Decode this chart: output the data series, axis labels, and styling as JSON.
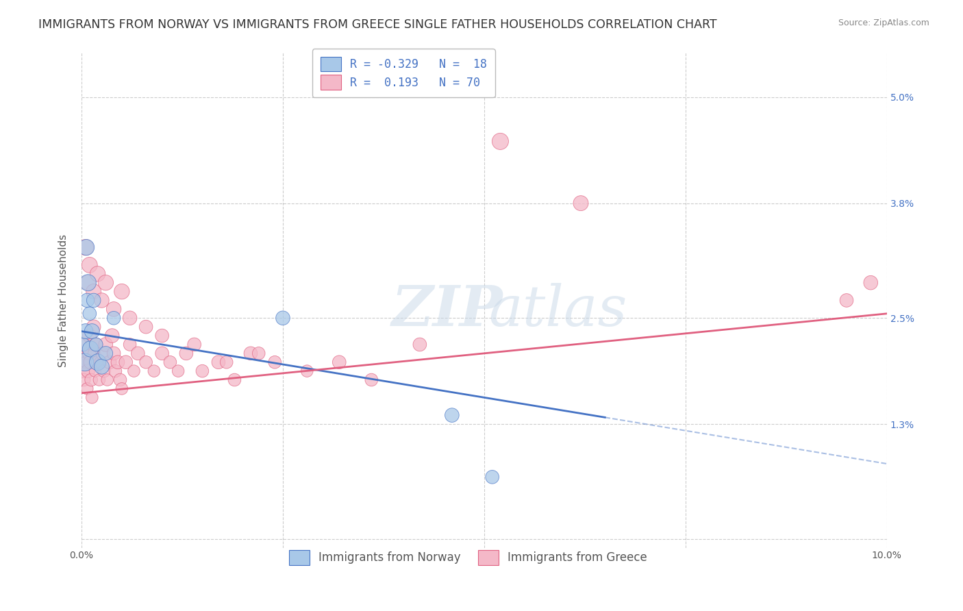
{
  "title": "IMMIGRANTS FROM NORWAY VS IMMIGRANTS FROM GREECE SINGLE FATHER HOUSEHOLDS CORRELATION CHART",
  "source": "Source: ZipAtlas.com",
  "ylabel": "Single Father Households",
  "xlim": [
    0.0,
    10.0
  ],
  "ylim": [
    -0.1,
    5.5
  ],
  "ytick_vals": [
    0.0,
    1.3,
    2.5,
    3.8,
    5.0
  ],
  "ytick_labels": [
    "",
    "1.3%",
    "2.5%",
    "3.8%",
    "5.0%"
  ],
  "xtick_vals": [
    0.0,
    2.5,
    5.0,
    7.5,
    10.0
  ],
  "xtick_labels": [
    "0.0%",
    "",
    "",
    "",
    "10.0%"
  ],
  "norway_R": -0.329,
  "norway_N": 18,
  "greece_R": 0.193,
  "greece_N": 70,
  "norway_color": "#A8C8E8",
  "greece_color": "#F4B8C8",
  "norway_edge_color": "#4472C4",
  "greece_edge_color": "#E06080",
  "norway_line_color": "#4472C4",
  "greece_line_color": "#E06080",
  "norway_line_y0": 2.35,
  "norway_line_y_at_x7": 1.3,
  "greece_line_y0": 1.65,
  "greece_line_y10": 2.55,
  "norway_scatter_x": [
    0.02,
    0.04,
    0.05,
    0.06,
    0.07,
    0.08,
    0.1,
    0.11,
    0.13,
    0.15,
    0.18,
    0.2,
    0.25,
    0.3,
    0.4,
    2.5,
    4.6,
    5.1
  ],
  "norway_scatter_y": [
    2.2,
    2.0,
    2.35,
    3.3,
    2.7,
    2.9,
    2.55,
    2.15,
    2.35,
    2.7,
    2.2,
    2.0,
    1.95,
    2.1,
    2.5,
    2.5,
    1.4,
    0.7
  ],
  "norway_scatter_size": [
    200,
    350,
    250,
    280,
    220,
    300,
    200,
    280,
    250,
    220,
    200,
    300,
    250,
    220,
    200,
    220,
    220,
    200
  ],
  "greece_scatter_x": [
    0.01,
    0.02,
    0.03,
    0.04,
    0.05,
    0.06,
    0.07,
    0.08,
    0.09,
    0.1,
    0.11,
    0.12,
    0.13,
    0.14,
    0.15,
    0.16,
    0.17,
    0.18,
    0.2,
    0.22,
    0.24,
    0.26,
    0.28,
    0.3,
    0.32,
    0.35,
    0.38,
    0.4,
    0.42,
    0.45,
    0.48,
    0.5,
    0.55,
    0.6,
    0.65,
    0.7,
    0.8,
    0.9,
    1.0,
    1.1,
    1.2,
    1.3,
    1.5,
    1.7,
    1.9,
    2.1,
    2.4,
    2.8,
    3.2,
    3.6,
    4.2,
    5.2,
    6.2,
    9.5,
    0.05,
    0.08,
    0.1,
    0.15,
    0.2,
    0.25,
    0.3,
    0.4,
    0.5,
    0.6,
    0.8,
    1.0,
    1.4,
    1.8,
    2.2,
    9.8
  ],
  "greece_scatter_y": [
    2.0,
    1.9,
    1.8,
    2.1,
    2.2,
    2.0,
    1.7,
    1.9,
    2.1,
    2.3,
    2.0,
    1.8,
    1.6,
    2.2,
    2.4,
    2.1,
    1.9,
    2.2,
    2.0,
    1.8,
    2.0,
    2.1,
    1.9,
    2.2,
    1.8,
    2.0,
    2.3,
    2.1,
    1.9,
    2.0,
    1.8,
    1.7,
    2.0,
    2.2,
    1.9,
    2.1,
    2.0,
    1.9,
    2.1,
    2.0,
    1.9,
    2.1,
    1.9,
    2.0,
    1.8,
    2.1,
    2.0,
    1.9,
    2.0,
    1.8,
    2.2,
    4.5,
    3.8,
    2.7,
    3.3,
    2.9,
    3.1,
    2.8,
    3.0,
    2.7,
    2.9,
    2.6,
    2.8,
    2.5,
    2.4,
    2.3,
    2.2,
    2.0,
    2.1,
    2.9
  ],
  "greece_scatter_size": [
    160,
    200,
    180,
    200,
    220,
    180,
    160,
    200,
    180,
    220,
    200,
    180,
    160,
    200,
    220,
    180,
    160,
    200,
    180,
    160,
    180,
    200,
    180,
    220,
    160,
    200,
    220,
    200,
    180,
    200,
    180,
    160,
    200,
    180,
    160,
    200,
    180,
    160,
    200,
    180,
    160,
    200,
    180,
    200,
    180,
    200,
    180,
    160,
    200,
    180,
    200,
    300,
    250,
    200,
    280,
    260,
    270,
    250,
    260,
    240,
    260,
    240,
    260,
    220,
    200,
    200,
    200,
    180,
    180,
    220
  ],
  "background_color": "#FFFFFF",
  "grid_color": "#CCCCCC",
  "title_fontsize": 12.5,
  "axis_label_fontsize": 11,
  "tick_fontsize": 10,
  "legend_fontsize": 12,
  "right_tick_color": "#4472C4"
}
